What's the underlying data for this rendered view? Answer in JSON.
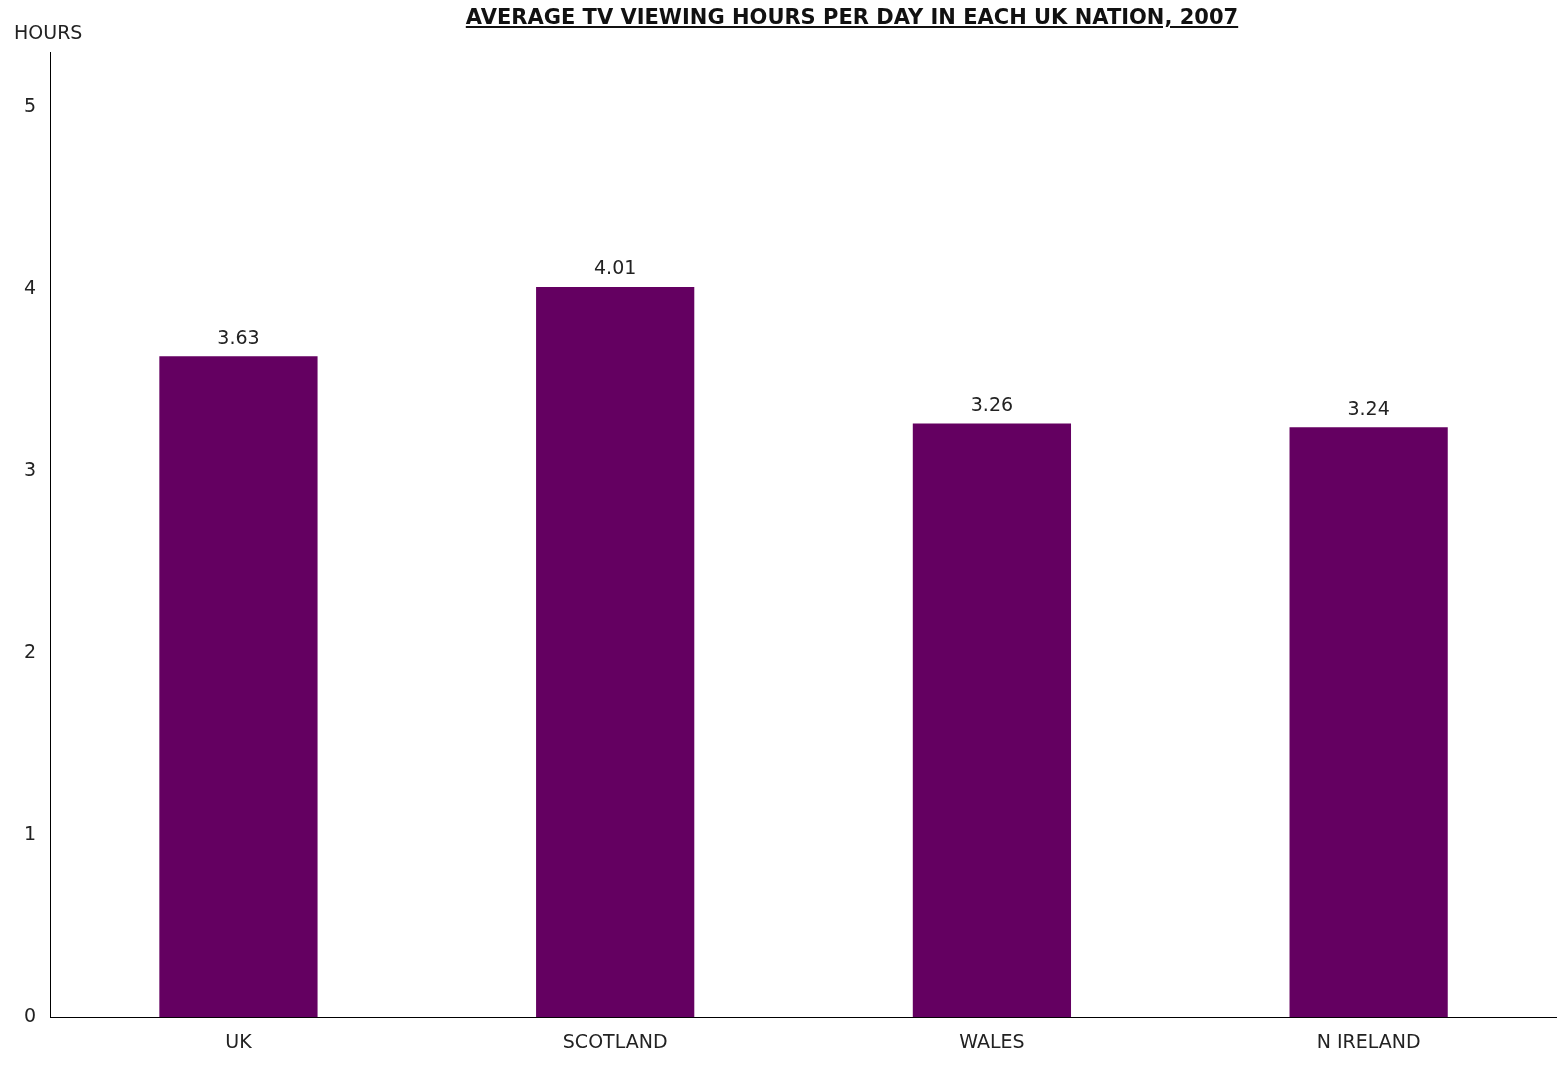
{
  "chart_data": {
    "type": "bar",
    "title": "AVERAGE TV VIEWING HOURS PER DAY IN EACH UK NATION, 2007",
    "ylabel": "HOURS",
    "categories": [
      "UK",
      "SCOTLAND",
      "WALES",
      "N IRELAND"
    ],
    "values": [
      3.63,
      4.01,
      3.26,
      3.24
    ],
    "color": "#640061",
    "ylim": [
      0,
      5.3
    ],
    "yticks": [
      0,
      1,
      2,
      3,
      4,
      5
    ],
    "grid": false,
    "legend": false,
    "data_labels": true
  }
}
